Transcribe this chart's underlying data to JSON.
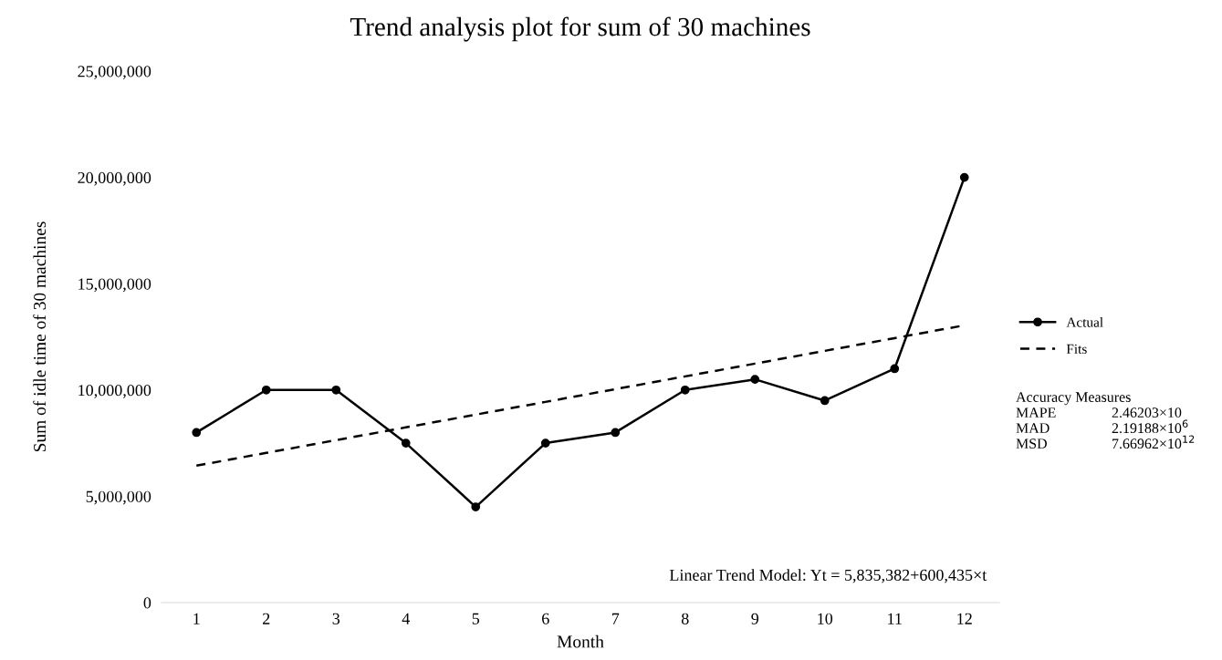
{
  "chart_data": {
    "type": "line",
    "title": "Trend analysis plot for sum of 30 machines",
    "xlabel": "Month",
    "ylabel": "Sum of idle time of 30 machines",
    "categories": [
      "1",
      "2",
      "3",
      "4",
      "5",
      "6",
      "7",
      "8",
      "9",
      "10",
      "11",
      "12"
    ],
    "series": [
      {
        "name": "Actual",
        "color": "#000000",
        "marker": "circle",
        "line_style": "solid",
        "values": [
          8000000,
          10000000,
          10000000,
          7500000,
          4500000,
          7500000,
          8000000,
          10000000,
          10500000,
          9500000,
          11000000,
          20000000
        ]
      },
      {
        "name": "Fits",
        "color": "#000000",
        "marker": "none",
        "line_style": "dashed",
        "values": [
          6440000,
          7040000,
          7640000,
          8240000,
          8840000,
          9440000,
          10040000,
          10640000,
          11240000,
          11840000,
          12440000,
          13040000
        ]
      }
    ],
    "ylim": [
      0,
      25000000
    ],
    "yticks": [
      {
        "value": 0,
        "label": "0"
      },
      {
        "value": 5000000,
        "label": "5,000,000"
      },
      {
        "value": 10000000,
        "label": "10,000,000"
      },
      {
        "value": 15000000,
        "label": "15,000,000"
      },
      {
        "value": 20000000,
        "label": "20,000,000"
      },
      {
        "value": 25000000,
        "label": "25,000,000"
      }
    ],
    "grid": false,
    "legend": "right",
    "annotations": [
      "Linear Trend Model: Yt = 5,835,382+600,435×t",
      "Accuracy Measures",
      "MAPE",
      "2.46203×10",
      "MAD",
      "2.19188×10$^{6}$",
      "MSD",
      "7.66962×10$^{12}$"
    ]
  }
}
